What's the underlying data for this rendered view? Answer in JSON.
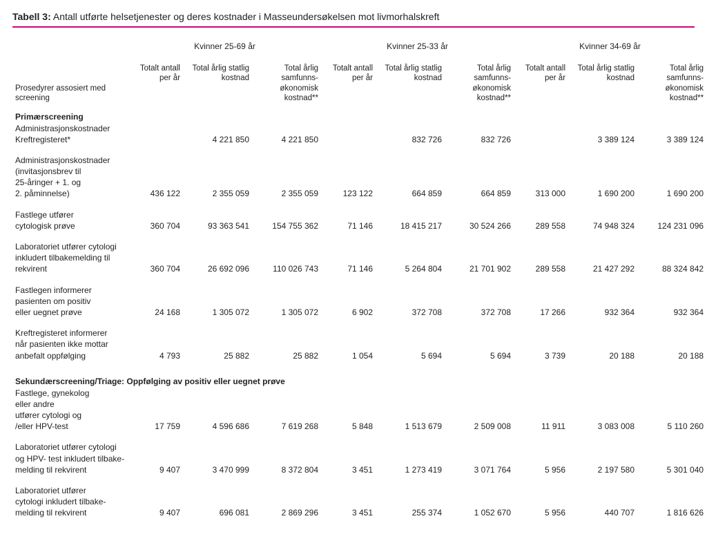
{
  "title_prefix": "Tabell 3:",
  "title_rest": " Antall utførte helsetjenester og deres kostnader i Masseundersøkelsen mot livmorhalskreft",
  "accent_color": "#d6007b",
  "groupHeaders": [
    "Kvinner 25-69 år",
    "Kvinner 25-33 år",
    "Kvinner 34-69 år"
  ],
  "rowLabelHeader": "Prosedyrer assosiert med screening",
  "subHeaders": {
    "count": "Totalt antall per år",
    "stat": "Total årlig statlig kostnad",
    "soc": "Total årlig samfunns-økonomisk kostnad**"
  },
  "sections": [
    {
      "title": "Primærscreening",
      "rows": [
        {
          "labelLines": [
            "Administrasjonskostnader",
            "Kreftregisteret*"
          ],
          "vals": [
            "",
            "4 221 850",
            "4 221 850",
            "",
            "832 726",
            "832 726",
            "",
            "3 389 124",
            "3 389 124"
          ]
        },
        {
          "labelLines": [
            "Administrasjonskostnader",
            "(invitasjonsbrev til",
            "25-åringer + 1. og",
            "2. påminnelse)"
          ],
          "vals": [
            "436 122",
            "2 355 059",
            "2 355 059",
            "123 122",
            "664 859",
            "664 859",
            "313 000",
            "1 690 200",
            "1 690 200"
          ]
        },
        {
          "labelLines": [
            "Fastlege utfører",
            "cytologisk prøve"
          ],
          "vals": [
            "360 704",
            "93 363 541",
            "154 755 362",
            "71 146",
            "18 415 217",
            "30 524 266",
            "289 558",
            "74 948 324",
            "124 231 096"
          ]
        },
        {
          "labelLines": [
            "Laboratoriet  utfører cytologi",
            "inkludert tilbakemelding til",
            "rekvirent"
          ],
          "vals": [
            "360 704",
            "26 692 096",
            "110 026 743",
            "71 146",
            "5 264 804",
            "21 701 902",
            "289 558",
            "21 427 292",
            "88 324 842"
          ]
        },
        {
          "labelLines": [
            "Fastlegen informerer",
            "pasienten om positiv",
            "eller uegnet prøve"
          ],
          "vals": [
            "24 168",
            "1 305 072",
            "1 305 072",
            "6 902",
            "372 708",
            "372 708",
            "17 266",
            "932 364",
            "932 364"
          ]
        },
        {
          "labelLines": [
            "Kreftregisteret informerer",
            "når pasienten ikke mottar",
            "anbefalt oppfølging"
          ],
          "vals": [
            "4 793",
            "25 882",
            "25 882",
            "1 054",
            "5 694",
            "5 694",
            "3 739",
            "20 188",
            "20 188"
          ]
        }
      ]
    },
    {
      "title": "Sekundærscreening/Triage: Oppfølging av positiv eller uegnet prøve",
      "rows": [
        {
          "labelLines": [
            "Fastlege, gynekolog",
            "eller andre",
            "utfører cytologi og",
            "/eller HPV-test"
          ],
          "vals": [
            "17 759",
            "4 596 686",
            "7 619 268",
            "5 848",
            "1 513 679",
            "2 509 008",
            "11 911",
            "3 083 008",
            "5 110 260"
          ]
        },
        {
          "labelLines": [
            "Laboratoriet utfører cytologi",
            "og HPV- test inkludert tilbake-",
            "melding til rekvirent"
          ],
          "vals": [
            "9 407",
            "3 470 999",
            "8 372 804",
            "3 451",
            "1 273 419",
            "3 071 764",
            "5 956",
            "2 197 580",
            "5 301 040"
          ]
        },
        {
          "labelLines": [
            "Laboratoriet  utfører",
            "cytologi inkludert tilbake-",
            "melding til rekvirent"
          ],
          "vals": [
            "9 407",
            "696 081",
            "2 869 296",
            "3 451",
            "255 374",
            "1 052 670",
            "5 956",
            "440 707",
            "1 816 626"
          ]
        }
      ]
    }
  ]
}
